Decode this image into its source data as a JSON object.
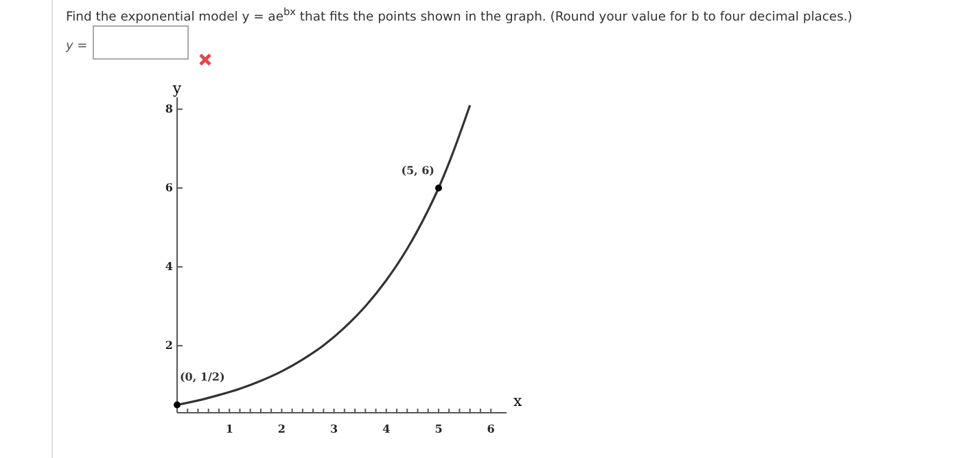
{
  "chart_data": {
    "type": "line",
    "title": "Find the exponential model y = ae$^{bx}$ that fits the points shown in the graph. (Round your value for b to four decimal places.)",
    "annotations": [
      "y =",
      {
        "text": "(0, 1/2)",
        "x": 0,
        "y": 0.5
      },
      {
        "text": "(5, 6)",
        "x": 5,
        "y": 6
      }
    ],
    "xlabel": "x",
    "ylabel": "y",
    "xlim": [
      0,
      6.3
    ],
    "ylim": [
      0.3,
      8.3
    ],
    "xticks": [
      {
        "value": 0.2,
        "label": null
      },
      {
        "value": 0.4,
        "label": null
      },
      {
        "value": 0.6,
        "label": null
      },
      {
        "value": 0.8,
        "label": null
      },
      1,
      {
        "value": 1.2,
        "label": null
      },
      {
        "value": 1.4,
        "label": null
      },
      {
        "value": 1.6,
        "label": null
      },
      {
        "value": 1.8,
        "label": null
      },
      2,
      {
        "value": 2.2,
        "label": null
      },
      {
        "value": 2.4,
        "label": null
      },
      {
        "value": 2.6,
        "label": null
      },
      {
        "value": 2.8,
        "label": null
      },
      3,
      {
        "value": 3.2,
        "label": null
      },
      {
        "value": 3.4,
        "label": null
      },
      {
        "value": 3.6,
        "label": null
      },
      {
        "value": 3.8,
        "label": null
      },
      4,
      {
        "value": 4.2,
        "label": null
      },
      {
        "value": 4.4,
        "label": null
      },
      {
        "value": 4.6,
        "label": null
      },
      {
        "value": 4.8,
        "label": null
      },
      5,
      {
        "value": 5.2,
        "label": null
      },
      {
        "value": 5.4,
        "label": null
      },
      {
        "value": 5.6,
        "label": null
      },
      {
        "value": 5.8,
        "label": null
      },
      6
    ],
    "yticks": [
      2,
      4,
      6,
      8
    ],
    "series": [
      {
        "color": "#333333",
        "x": [
          0,
          0.4,
          0.8,
          1.2,
          1.6,
          2.0,
          2.4,
          2.8,
          3.2,
          3.6,
          4.0,
          4.4,
          4.8,
          5.0,
          5.2,
          5.6
        ],
        "values": [
          0.5,
          0.61,
          0.75,
          0.91,
          1.11,
          1.35,
          1.65,
          2.01,
          2.46,
          3.0,
          3.66,
          4.46,
          5.44,
          6.0,
          6.64,
          8.1
        ]
      },
      {
        "type": "scatter",
        "color": "#000000",
        "x": [
          0,
          5
        ],
        "values": [
          0.5,
          6
        ]
      }
    ]
  }
}
